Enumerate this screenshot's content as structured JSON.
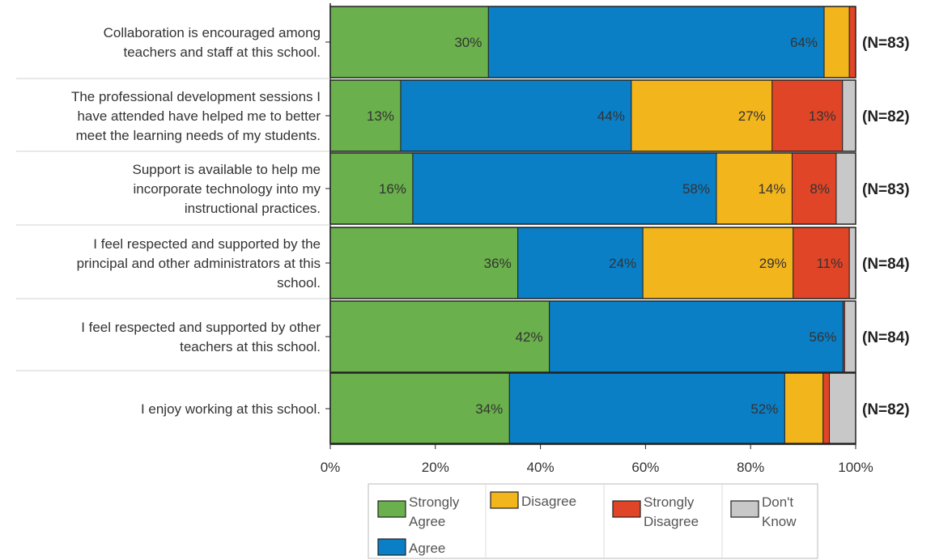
{
  "chart_data": {
    "type": "bar",
    "orientation": "horizontal",
    "stacked": true,
    "title": "",
    "xlabel": "",
    "ylabel": "",
    "xlim": [
      0,
      100
    ],
    "x_ticks": [
      "0%",
      "20%",
      "40%",
      "60%",
      "80%",
      "100%"
    ],
    "grid": false,
    "legend_position": "bottom",
    "categories": [
      [
        "Collaboration is encouraged among",
        "teachers and staff at this school."
      ],
      [
        "The professional development sessions I",
        "have attended have helped me to better",
        "meet the learning needs of my students."
      ],
      [
        "Support is available to help me",
        "incorporate technology into my",
        "instructional practices."
      ],
      [
        "I feel respected and supported by the",
        "principal and other administrators at this",
        "school."
      ],
      [
        "I feel respected and supported by other",
        "teachers at this school."
      ],
      [
        "I enjoy working at this school."
      ]
    ],
    "n_labels": [
      "(N=83)",
      "(N=82)",
      "(N=83)",
      "(N=84)",
      "(N=84)",
      "(N=82)"
    ],
    "series": [
      {
        "name": "Strongly Agree",
        "legend_lines": [
          "Strongly",
          "Agree"
        ],
        "color": "#6ab04c",
        "values": [
          30.1,
          13.4,
          15.7,
          35.7,
          41.7,
          34.1
        ],
        "labels": [
          "30%",
          "13%",
          "16%",
          "36%",
          "42%",
          "34%"
        ]
      },
      {
        "name": "Agree",
        "legend_lines": [
          "Agree"
        ],
        "color": "#0a7fc6",
        "values": [
          63.9,
          43.9,
          57.8,
          23.8,
          55.9,
          52.4
        ],
        "labels": [
          "64%",
          "44%",
          "58%",
          "24%",
          "56%",
          "52%"
        ]
      },
      {
        "name": "Disagree",
        "legend_lines": [
          "Disagree"
        ],
        "color": "#f3b51c",
        "values": [
          4.8,
          26.8,
          14.4,
          28.6,
          0,
          7.3
        ],
        "labels": [
          "",
          "27%",
          "14%",
          "29%",
          "",
          ""
        ]
      },
      {
        "name": "Strongly Disagree",
        "legend_lines": [
          "Strongly",
          "Disagree"
        ],
        "color": "#e04527",
        "values": [
          1.2,
          13.4,
          8.4,
          10.7,
          0.3,
          1.2
        ],
        "labels": [
          "",
          "13%",
          "8%",
          "11%",
          "",
          ""
        ]
      },
      {
        "name": "Don't Know",
        "legend_lines": [
          "Don't",
          "Know"
        ],
        "color": "#c8c8c8",
        "values": [
          0,
          2.5,
          3.7,
          1.2,
          2.1,
          5.0
        ],
        "labels": [
          "",
          "",
          "",
          "",
          "",
          ""
        ]
      }
    ]
  }
}
